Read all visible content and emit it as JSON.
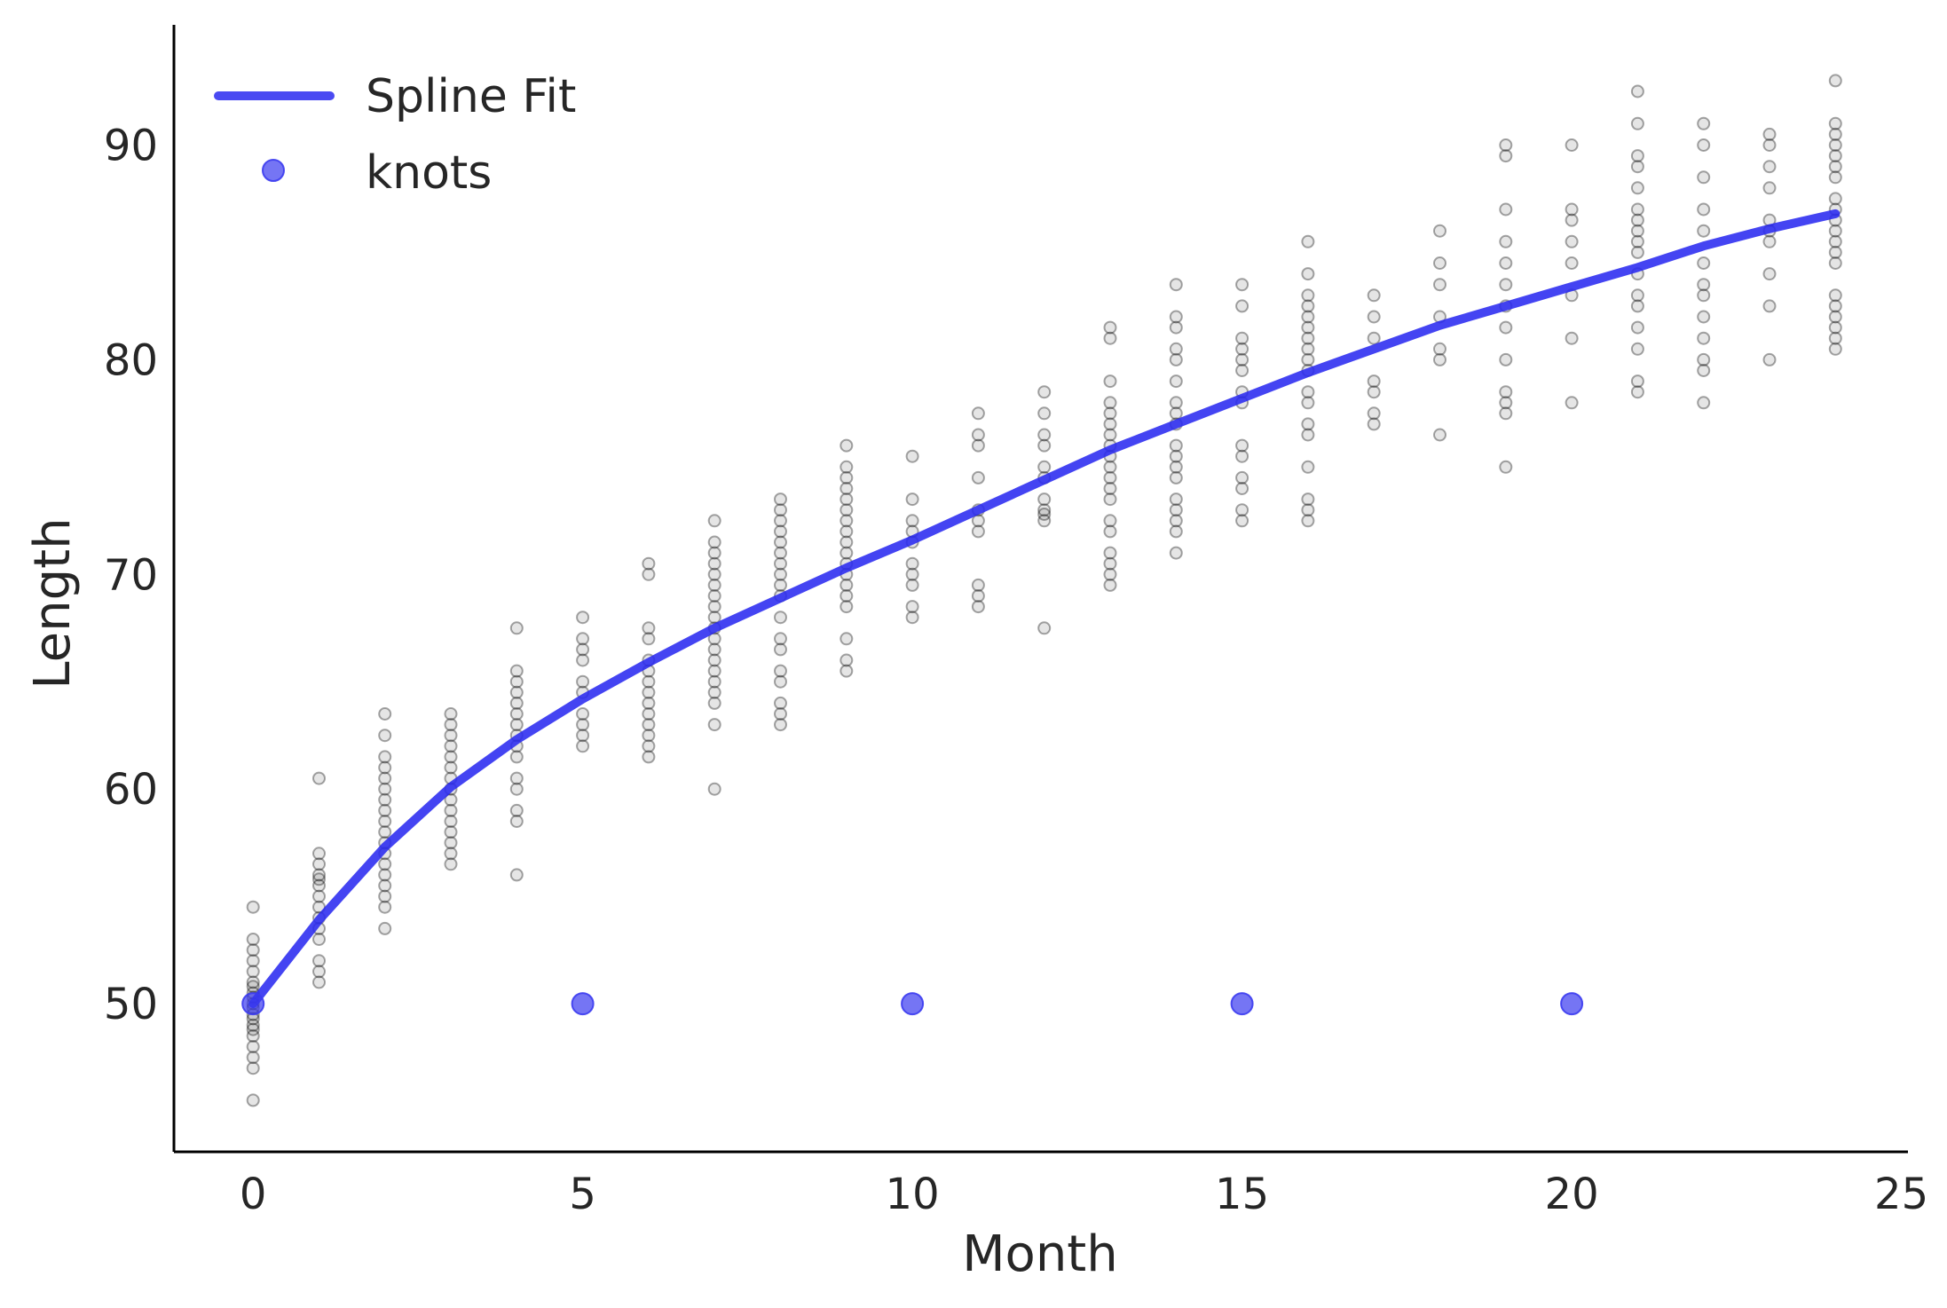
{
  "chart_data": {
    "type": "scatter",
    "title": "",
    "xlabel": "Month",
    "ylabel": "Length",
    "xlim": [
      -1.2,
      25.1
    ],
    "ylim": [
      43.1,
      95.6
    ],
    "xticks": [
      0,
      5,
      10,
      15,
      20,
      25
    ],
    "yticks": [
      50,
      60,
      70,
      80,
      90
    ],
    "grid": false,
    "legend_position": "top-left",
    "colors": {
      "fit": "#2a2af0",
      "knots": "#3b3bf0",
      "data": "#000000",
      "axis": "#000000",
      "text": "#262626"
    },
    "legend": [
      {
        "label": "Spline Fit",
        "kind": "line"
      },
      {
        "label": "knots",
        "kind": "marker"
      }
    ],
    "series": [
      {
        "name": "Spline Fit",
        "kind": "line",
        "x": [
          0,
          1,
          2,
          3,
          4,
          5,
          6,
          7,
          8,
          9,
          10,
          11,
          12,
          13,
          14,
          15,
          16,
          17,
          18,
          19,
          20,
          21,
          22,
          23,
          24
        ],
        "y": [
          50.0,
          53.9,
          57.3,
          60.1,
          62.3,
          64.2,
          65.9,
          67.5,
          68.9,
          70.3,
          71.6,
          73.0,
          74.4,
          75.8,
          77.0,
          78.2,
          79.4,
          80.5,
          81.6,
          82.5,
          83.4,
          84.3,
          85.3,
          86.1,
          86.8
        ]
      },
      {
        "name": "knots",
        "kind": "marker",
        "x": [
          0,
          5,
          10,
          15,
          20
        ],
        "y": [
          50,
          50,
          50,
          50,
          50
        ]
      },
      {
        "kind": "scatter",
        "x": [
          0,
          0,
          0,
          0,
          0,
          0,
          0,
          0,
          0,
          0,
          0,
          0,
          0,
          0,
          0,
          0,
          0,
          0,
          0,
          0,
          1,
          1,
          1,
          1,
          1,
          1,
          1,
          1,
          1,
          1,
          1,
          1,
          1,
          1,
          2,
          2,
          2,
          2,
          2,
          2,
          2,
          2,
          2,
          2,
          2,
          2,
          2,
          2,
          2,
          2,
          2,
          2,
          3,
          3,
          3,
          3,
          3,
          3,
          3,
          3,
          3,
          3,
          3,
          3,
          3,
          3,
          3,
          4,
          4,
          4,
          4,
          4,
          4,
          4,
          4,
          4,
          4,
          4,
          4,
          4,
          4,
          4,
          5,
          5,
          5,
          5,
          5,
          5,
          5,
          5,
          5,
          5,
          6,
          6,
          6,
          6,
          6,
          6,
          6,
          6,
          6,
          6,
          6,
          6,
          6,
          6,
          7,
          7,
          7,
          7,
          7,
          7,
          7,
          7,
          7,
          7,
          7,
          7,
          7,
          7,
          7,
          7,
          7,
          7,
          7,
          8,
          8,
          8,
          8,
          8,
          8,
          8,
          8,
          8,
          8,
          8,
          8,
          8,
          8,
          8,
          8,
          8,
          8,
          9,
          9,
          9,
          9,
          9,
          9,
          9,
          9,
          9,
          9,
          9,
          9,
          9,
          9,
          9,
          9,
          9,
          9,
          10,
          10,
          10,
          10,
          10,
          10,
          10,
          10,
          10,
          10,
          11,
          11,
          11,
          11,
          11,
          11,
          11,
          11,
          11,
          11,
          12,
          12,
          12,
          12,
          12,
          12,
          12,
          12,
          12,
          12,
          12,
          13,
          13,
          13,
          13,
          13,
          13,
          13,
          13,
          13,
          13,
          13,
          13,
          13,
          13,
          13,
          13,
          13,
          13,
          13,
          14,
          14,
          14,
          14,
          14,
          14,
          14,
          14,
          14,
          14,
          14,
          14,
          14,
          14,
          14,
          14,
          14,
          14,
          15,
          15,
          15,
          15,
          15,
          15,
          15,
          15,
          15,
          15,
          15,
          15,
          15,
          15,
          16,
          16,
          16,
          16,
          16,
          16,
          16,
          16,
          16,
          16,
          16,
          16,
          16,
          16,
          16,
          16,
          16,
          16,
          17,
          17,
          17,
          17,
          17,
          17,
          17,
          18,
          18,
          18,
          18,
          18,
          18,
          18,
          19,
          19,
          19,
          19,
          19,
          19,
          19,
          19,
          19,
          19,
          19,
          19,
          19,
          20,
          20,
          20,
          20,
          20,
          20,
          20,
          20,
          21,
          21,
          21,
          21,
          21,
          21,
          21,
          21,
          21,
          21,
          21,
          21,
          21,
          21,
          21,
          21,
          21,
          22,
          22,
          22,
          22,
          22,
          22,
          22,
          22,
          22,
          22,
          22,
          22,
          22,
          23,
          23,
          23,
          23,
          23,
          23,
          23,
          23,
          23,
          23,
          24,
          24,
          24,
          24,
          24,
          24,
          24,
          24,
          24,
          24,
          24,
          24,
          24,
          24,
          24,
          24,
          24,
          24,
          24,
          24
        ],
        "y": [
          45.5,
          47.0,
          47.5,
          48.0,
          48.5,
          48.8,
          49.0,
          49.3,
          49.5,
          49.8,
          50.0,
          50.3,
          50.5,
          50.8,
          51.0,
          51.5,
          52.0,
          52.5,
          53.0,
          54.5,
          51.0,
          51.5,
          52.0,
          53.0,
          53.5,
          54.0,
          54.5,
          55.0,
          55.5,
          55.8,
          56.0,
          56.5,
          57.0,
          60.5,
          53.5,
          54.5,
          55.0,
          55.5,
          56.0,
          56.5,
          57.0,
          57.5,
          58.0,
          58.5,
          59.0,
          59.5,
          60.0,
          60.5,
          61.0,
          61.5,
          62.5,
          63.5,
          56.5,
          57.0,
          57.5,
          58.0,
          58.5,
          59.0,
          59.5,
          60.0,
          60.5,
          61.0,
          61.5,
          62.0,
          62.5,
          63.0,
          63.5,
          56.0,
          58.5,
          59.0,
          60.0,
          60.5,
          61.5,
          62.0,
          62.5,
          63.0,
          63.5,
          64.0,
          64.5,
          65.0,
          65.5,
          67.5,
          62.0,
          62.5,
          63.0,
          63.5,
          64.5,
          65.0,
          66.0,
          66.5,
          67.0,
          68.0,
          61.5,
          62.0,
          62.5,
          63.0,
          63.5,
          64.0,
          64.5,
          65.0,
          65.5,
          66.0,
          67.0,
          67.5,
          70.0,
          70.5,
          60.0,
          63.0,
          64.0,
          64.5,
          65.0,
          65.5,
          66.0,
          66.5,
          67.0,
          67.5,
          68.0,
          68.5,
          69.0,
          69.5,
          70.0,
          70.5,
          71.0,
          71.5,
          72.5,
          63.0,
          63.5,
          64.0,
          65.0,
          65.5,
          66.5,
          67.0,
          68.0,
          69.0,
          69.5,
          70.0,
          70.5,
          71.0,
          71.5,
          72.0,
          72.5,
          73.0,
          73.5,
          65.5,
          66.0,
          67.0,
          68.5,
          69.0,
          69.5,
          70.0,
          70.5,
          71.0,
          71.5,
          72.0,
          72.5,
          73.0,
          73.5,
          74.0,
          74.5,
          75.0,
          76.0,
          68.0,
          68.5,
          69.5,
          70.0,
          70.5,
          71.5,
          72.0,
          72.5,
          73.5,
          75.5,
          68.5,
          69.0,
          69.5,
          72.0,
          72.5,
          73.0,
          74.5,
          76.0,
          76.5,
          77.5,
          67.5,
          72.5,
          73.0,
          73.5,
          74.5,
          75.0,
          76.0,
          76.5,
          77.5,
          78.5,
          72.8,
          69.5,
          70.0,
          70.5,
          71.0,
          72.0,
          72.5,
          73.5,
          74.0,
          74.5,
          75.0,
          75.5,
          76.0,
          76.5,
          77.0,
          77.5,
          78.0,
          79.0,
          81.0,
          81.5,
          71.0,
          72.0,
          72.5,
          73.0,
          73.5,
          74.5,
          75.0,
          75.5,
          76.0,
          77.0,
          77.5,
          78.0,
          79.0,
          80.0,
          80.5,
          81.5,
          82.0,
          83.5,
          72.5,
          73.0,
          74.0,
          74.5,
          75.5,
          76.0,
          78.0,
          78.5,
          79.5,
          80.0,
          80.5,
          81.0,
          82.5,
          83.5,
          72.5,
          73.0,
          73.5,
          75.0,
          76.5,
          77.0,
          78.0,
          78.5,
          79.5,
          80.0,
          80.5,
          81.0,
          81.5,
          82.0,
          82.5,
          83.0,
          84.0,
          85.5,
          77.0,
          77.5,
          78.5,
          79.0,
          81.0,
          82.0,
          83.0,
          76.5,
          80.0,
          80.5,
          82.0,
          83.5,
          84.5,
          86.0,
          75.0,
          77.5,
          78.0,
          78.5,
          80.0,
          81.5,
          82.5,
          83.5,
          84.5,
          85.5,
          87.0,
          89.5,
          90.0,
          78.0,
          81.0,
          83.0,
          84.5,
          85.5,
          86.5,
          87.0,
          90.0,
          78.5,
          79.0,
          80.5,
          81.5,
          82.5,
          83.0,
          84.0,
          85.0,
          85.5,
          86.0,
          86.5,
          87.0,
          88.0,
          89.0,
          89.5,
          91.0,
          92.5,
          78.0,
          79.5,
          80.0,
          81.0,
          82.0,
          83.0,
          83.5,
          84.5,
          86.0,
          87.0,
          88.5,
          90.0,
          91.0,
          80.0,
          82.5,
          84.0,
          85.5,
          86.0,
          86.5,
          88.0,
          89.0,
          90.0,
          90.5,
          80.5,
          81.0,
          81.5,
          82.0,
          82.5,
          83.0,
          84.5,
          85.0,
          85.5,
          86.0,
          86.5,
          87.0,
          87.5,
          88.5,
          89.0,
          89.5,
          90.0,
          90.5,
          91.0,
          93.0
        ]
      }
    ]
  }
}
